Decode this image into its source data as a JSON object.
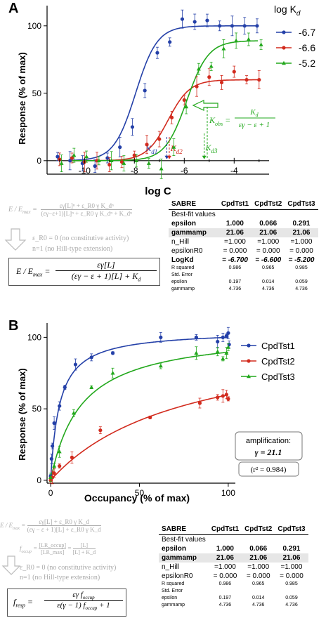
{
  "chart_data": [
    {
      "panel": "A",
      "type": "line",
      "xlabel": "log C",
      "ylabel": "Response (% of max)",
      "xlim": [
        -11.5,
        -2.6
      ],
      "ylim": [
        -10,
        115
      ],
      "xticks": [
        -10,
        -8,
        -6,
        -4
      ],
      "yticks": [
        0,
        50,
        100
      ],
      "legend_title": "log K",
      "legend_title_sub": "d",
      "legend_placement": "top-right",
      "series": [
        {
          "name": "-6.7",
          "color": "#2440a8",
          "marker": "circle",
          "logKd": -6.7,
          "Emax": 100,
          "x": [
            -11,
            -10.5,
            -10,
            -9.5,
            -9,
            -8.5,
            -8,
            -7.5,
            -7,
            -6.5,
            -6,
            -5.5,
            -5,
            -4.5,
            -4,
            -3.5,
            -3
          ],
          "y": [
            3,
            0,
            -2,
            -4,
            2,
            10,
            25,
            52,
            80,
            88,
            105,
            103,
            104,
            100,
            100,
            100,
            100
          ]
        },
        {
          "name": "-6.6",
          "color": "#d22b1e",
          "marker": "circle",
          "logKd": -6.6,
          "Emax": 60,
          "x": [
            -11,
            -10.5,
            -10,
            -9.5,
            -9,
            -8.5,
            -8,
            -7.5,
            -7,
            -6.5,
            -6,
            -5.5,
            -5,
            -4.5,
            -4,
            -3.5,
            -3
          ],
          "y": [
            1,
            2,
            -1,
            0,
            -3,
            -1,
            4,
            12,
            16,
            32,
            45,
            55,
            62,
            58,
            66,
            60,
            60
          ]
        },
        {
          "name": "-5.2",
          "color": "#22a81c",
          "marker": "triangle",
          "logKd": -5.2,
          "Emax": 89,
          "x": [
            -11,
            -10.5,
            -10,
            -9.5,
            -9,
            -8.5,
            -8,
            -7.5,
            -7,
            -6.5,
            -6,
            -5.5,
            -5,
            -4.5,
            -4,
            -3.5,
            -3
          ],
          "y": [
            -2,
            4,
            3,
            0,
            0,
            -2,
            0,
            -2,
            -6,
            10,
            40,
            68,
            70,
            83,
            89,
            90,
            86
          ]
        }
      ],
      "kd_markers": [
        {
          "label": "K",
          "sub": "d1",
          "x": -6.7,
          "color": "#2440a8"
        },
        {
          "label": "K",
          "sub": "d2",
          "x": -6.6,
          "color": "#d22b1e"
        },
        {
          "label": "K",
          "sub": "d3",
          "x": -5.2,
          "color": "#22a81c"
        }
      ],
      "kobs_annotation": {
        "lhs": "K",
        "lhs_sub": "obs",
        "num": "K",
        "num_sub": "d",
        "den": "εγ − ε + 1"
      }
    },
    {
      "panel": "B",
      "type": "line",
      "xlabel": "Occupancy (% of max)",
      "ylabel": "Response (% of max)",
      "xlim": [
        -2,
        104
      ],
      "ylim": [
        -2,
        110
      ],
      "xticks": [
        0,
        50,
        100
      ],
      "yticks": [
        0,
        50,
        100
      ],
      "legend_placement": "top-right",
      "series": [
        {
          "name": "CpdTst1",
          "color": "#2440a8",
          "marker": "circle",
          "epsilon": 1.0,
          "x": [
            0,
            0.5,
            1,
            2,
            5,
            8,
            14,
            23,
            35,
            62,
            82,
            94,
            97,
            99,
            100,
            100.5
          ],
          "y": [
            3,
            15,
            24,
            40,
            52,
            65,
            81,
            86,
            89,
            100,
            100,
            97,
            100,
            101,
            103,
            95
          ]
        },
        {
          "name": "CpdTst2",
          "color": "#d22b1e",
          "marker": "circle",
          "epsilon": 0.066,
          "x": [
            0,
            1,
            2,
            5,
            12,
            28,
            56,
            84,
            94,
            97,
            99,
            100
          ],
          "y": [
            0,
            2,
            5,
            10,
            16,
            35,
            44,
            54,
            58,
            59,
            60,
            57
          ]
        },
        {
          "name": "CpdTst3",
          "color": "#22a81c",
          "marker": "triangle",
          "epsilon": 0.291,
          "x": [
            0,
            2,
            5,
            13,
            23,
            35,
            62,
            82,
            94,
            97,
            99,
            100
          ],
          "y": [
            2,
            10,
            20,
            47,
            65,
            75,
            80,
            89,
            90,
            85,
            89,
            93
          ]
        }
      ],
      "amplification_label": "amplification:",
      "amplification_value": "γ = 21.1",
      "r2_label": "(r² = 0.984)"
    }
  ],
  "panel_labels": {
    "a": "A",
    "b": "B"
  },
  "table_a": {
    "headers": [
      "SABRE",
      "CpdTst1",
      "CpdTst2",
      "CpdTst3"
    ],
    "rows": [
      {
        "label": "Best-fit values",
        "values": [
          "",
          "",
          ""
        ],
        "style": "plain"
      },
      {
        "label": "epsilon",
        "values": [
          "1.000",
          "0.066",
          "0.291"
        ],
        "style": "bold"
      },
      {
        "label": "gammamp",
        "values": [
          "21.06",
          "21.06",
          "21.06"
        ],
        "style": "boldshade"
      },
      {
        "label": "n_Hill",
        "values": [
          "=1.000",
          "=1.000",
          "=1.000"
        ],
        "style": "plain"
      },
      {
        "label": "epsilonR0",
        "values": [
          "= 0.000",
          "= 0.000",
          "= 0.000"
        ],
        "style": "plain"
      },
      {
        "label": "LogKd",
        "values": [
          "= -6.700",
          "= -6.600",
          "= -5.200"
        ],
        "style": "bolditalic"
      },
      {
        "label": "R squared",
        "values": [
          "0.986",
          "0.965",
          "0.985"
        ],
        "style": "small"
      },
      {
        "label": "Std. Error",
        "values": [
          "",
          "",
          ""
        ],
        "style": "small"
      },
      {
        "label": "epsilon",
        "values": [
          "0.197",
          "0.014",
          "0.059"
        ],
        "style": "small"
      },
      {
        "label": "gammamp",
        "values": [
          "4.736",
          "4.736",
          "4.736"
        ],
        "style": "small"
      }
    ]
  },
  "table_b": {
    "headers": [
      "SABRE",
      "CpdTst1",
      "CpdTst2",
      "CpdTst3"
    ],
    "rows": [
      {
        "label": "Best-fit values",
        "values": [
          "",
          "",
          ""
        ],
        "style": "plain"
      },
      {
        "label": "epsilon",
        "values": [
          "1.000",
          "0.066",
          "0.291"
        ],
        "style": "bold"
      },
      {
        "label": "gammamp",
        "values": [
          "21.06",
          "21.06",
          "21.06"
        ],
        "style": "boldshade"
      },
      {
        "label": "n_Hill",
        "values": [
          "=1.000",
          "=1.000",
          "=1.000"
        ],
        "style": "plain"
      },
      {
        "label": "epsilonR0",
        "values": [
          "= 0.000",
          "= 0.000",
          "= 0.000"
        ],
        "style": "plain"
      },
      {
        "label": "R squared",
        "values": [
          "0.986",
          "0.965",
          "0.985"
        ],
        "style": "small"
      },
      {
        "label": "Std. Error",
        "values": [
          "",
          "",
          ""
        ],
        "style": "small"
      },
      {
        "label": "epsilon",
        "values": [
          "0.197",
          "0.014",
          "0.059"
        ],
        "style": "small"
      },
      {
        "label": "gammamp",
        "values": [
          "4.736",
          "4.736",
          "4.736"
        ],
        "style": "small"
      }
    ]
  },
  "equations_a": {
    "gray_lhs": "E / E",
    "gray_lhs_sub": "max",
    "gray_num": "εγ[L]ⁿ + ε_R0 γ K_dⁿ",
    "gray_den": "(εγ−ε+1)[L]ⁿ + ε_R0 γ K_dⁿ + K_dⁿ",
    "note1": "ε_R0 = 0 (no constitutive activity)",
    "note2": "n=1 (no Hill-type extension)",
    "box_lhs": "E / E",
    "box_lhs_sub": "max",
    "box_num": "εγ[L]",
    "box_den": "(εγ − ε + 1)[L] + K"
  },
  "equations_b": {
    "gray1_lhs": "E / E",
    "gray1_lhs_sub": "max",
    "gray1_num": "εγ[L] + ε_R0 γ K_d",
    "gray1_den": "(εγ − ε + 1)[L] + ε_R0 γ K_d",
    "gray2_lhs": "f",
    "gray2_lhs_sub": "occup",
    "gray2_num": "[LR_occup]",
    "gray2_den": "[LR_max]",
    "gray2_rhs_num": "[L]",
    "gray2_rhs_den": "[L] + K_d",
    "note1": "ε_R0 = 0 (no constitutive activity)",
    "note2": "n=1 (no Hill-type extension)",
    "box_lhs": "f",
    "box_lhs_sub": "resp",
    "box_num": "εγ f",
    "box_num_sub": "occup",
    "box_den": "ε(γ − 1) f",
    "box_den_sub": "occup",
    "box_den_tail": "+ 1"
  }
}
